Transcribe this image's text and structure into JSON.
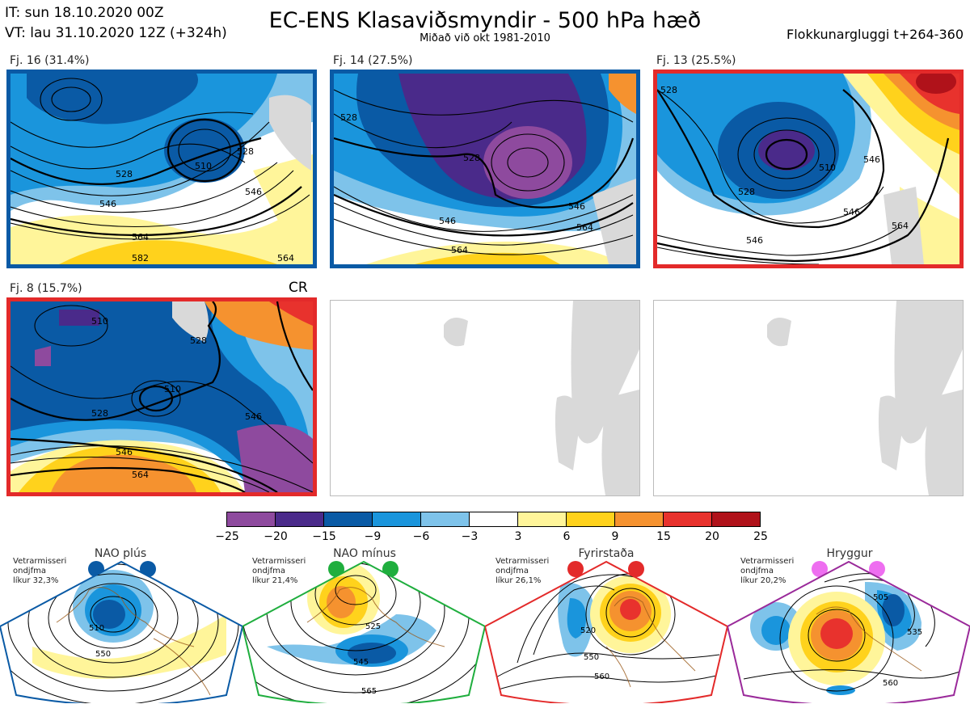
{
  "header": {
    "initial_time": "IT: sun 18.10.2020 00Z",
    "valid_time": "VT: lau 31.10.2020 12Z  (+324h)",
    "title": "EC-ENS Klasaviðsmyndir - 500 hPa hæð",
    "subtitle": "Miðað við okt 1981-2010",
    "window": "Flokkunargluggi t+264-360"
  },
  "clusters": [
    {
      "label": "Fj. 16 (31.4%)",
      "frame_color": "#0a5aa5",
      "contours": [
        "528",
        "510",
        "528",
        "546",
        "564",
        "582",
        "564",
        "546"
      ]
    },
    {
      "label": "Fj. 14 (27.5%)",
      "frame_color": "#0a5aa5",
      "contours": [
        "528",
        "528",
        "546",
        "546",
        "564",
        "564"
      ]
    },
    {
      "label": "Fj. 13 (25.5%)",
      "frame_color": "#e32a2a",
      "contours": [
        "528",
        "510",
        "528",
        "546",
        "546",
        "564",
        "546"
      ]
    },
    {
      "label": "Fj. 8 (15.7%)",
      "frame_color": "#e32a2a",
      "tag": "CR",
      "contours": [
        "510",
        "528",
        "510",
        "528",
        "546",
        "546",
        "564"
      ]
    }
  ],
  "colorbar": {
    "ticks": [
      "−25",
      "−20",
      "−15",
      "−9",
      "−6",
      "−3",
      "3",
      "6",
      "9",
      "15",
      "20",
      "25"
    ],
    "colors": [
      "#8e4a9e",
      "#4a2a8a",
      "#0a5aa5",
      "#1a95dc",
      "#7ec3ea",
      "#ffffff",
      "#fff59a",
      "#ffd21c",
      "#f5922f",
      "#e8322d",
      "#b0121a"
    ]
  },
  "regimes": [
    {
      "name": "NAO plús",
      "season": "Vetrarmisseri",
      "line2": "ondjfma",
      "freq": "líkur 32,3%",
      "color": "#0a5aa5",
      "labels": [
        "510",
        "550"
      ]
    },
    {
      "name": "NAO mínus",
      "season": "Vetrarmisseri",
      "line2": "ondjfma",
      "freq": "líkur 21,4%",
      "color": "#1fae3e",
      "labels": [
        "525",
        "545",
        "565"
      ]
    },
    {
      "name": "Fyrirstaða",
      "season": "Vetrarmisseri",
      "line2": "ondjfma",
      "freq": "líkur 26,1%",
      "color": "#e32a2a",
      "labels": [
        "520",
        "550",
        "560"
      ]
    },
    {
      "name": "Hryggur",
      "season": "Vetrarmisseri",
      "line2": "ondjfma",
      "freq": "líkur 20,2%",
      "color": "#ee6ef0",
      "labels": [
        "505",
        "535",
        "560"
      ]
    }
  ]
}
